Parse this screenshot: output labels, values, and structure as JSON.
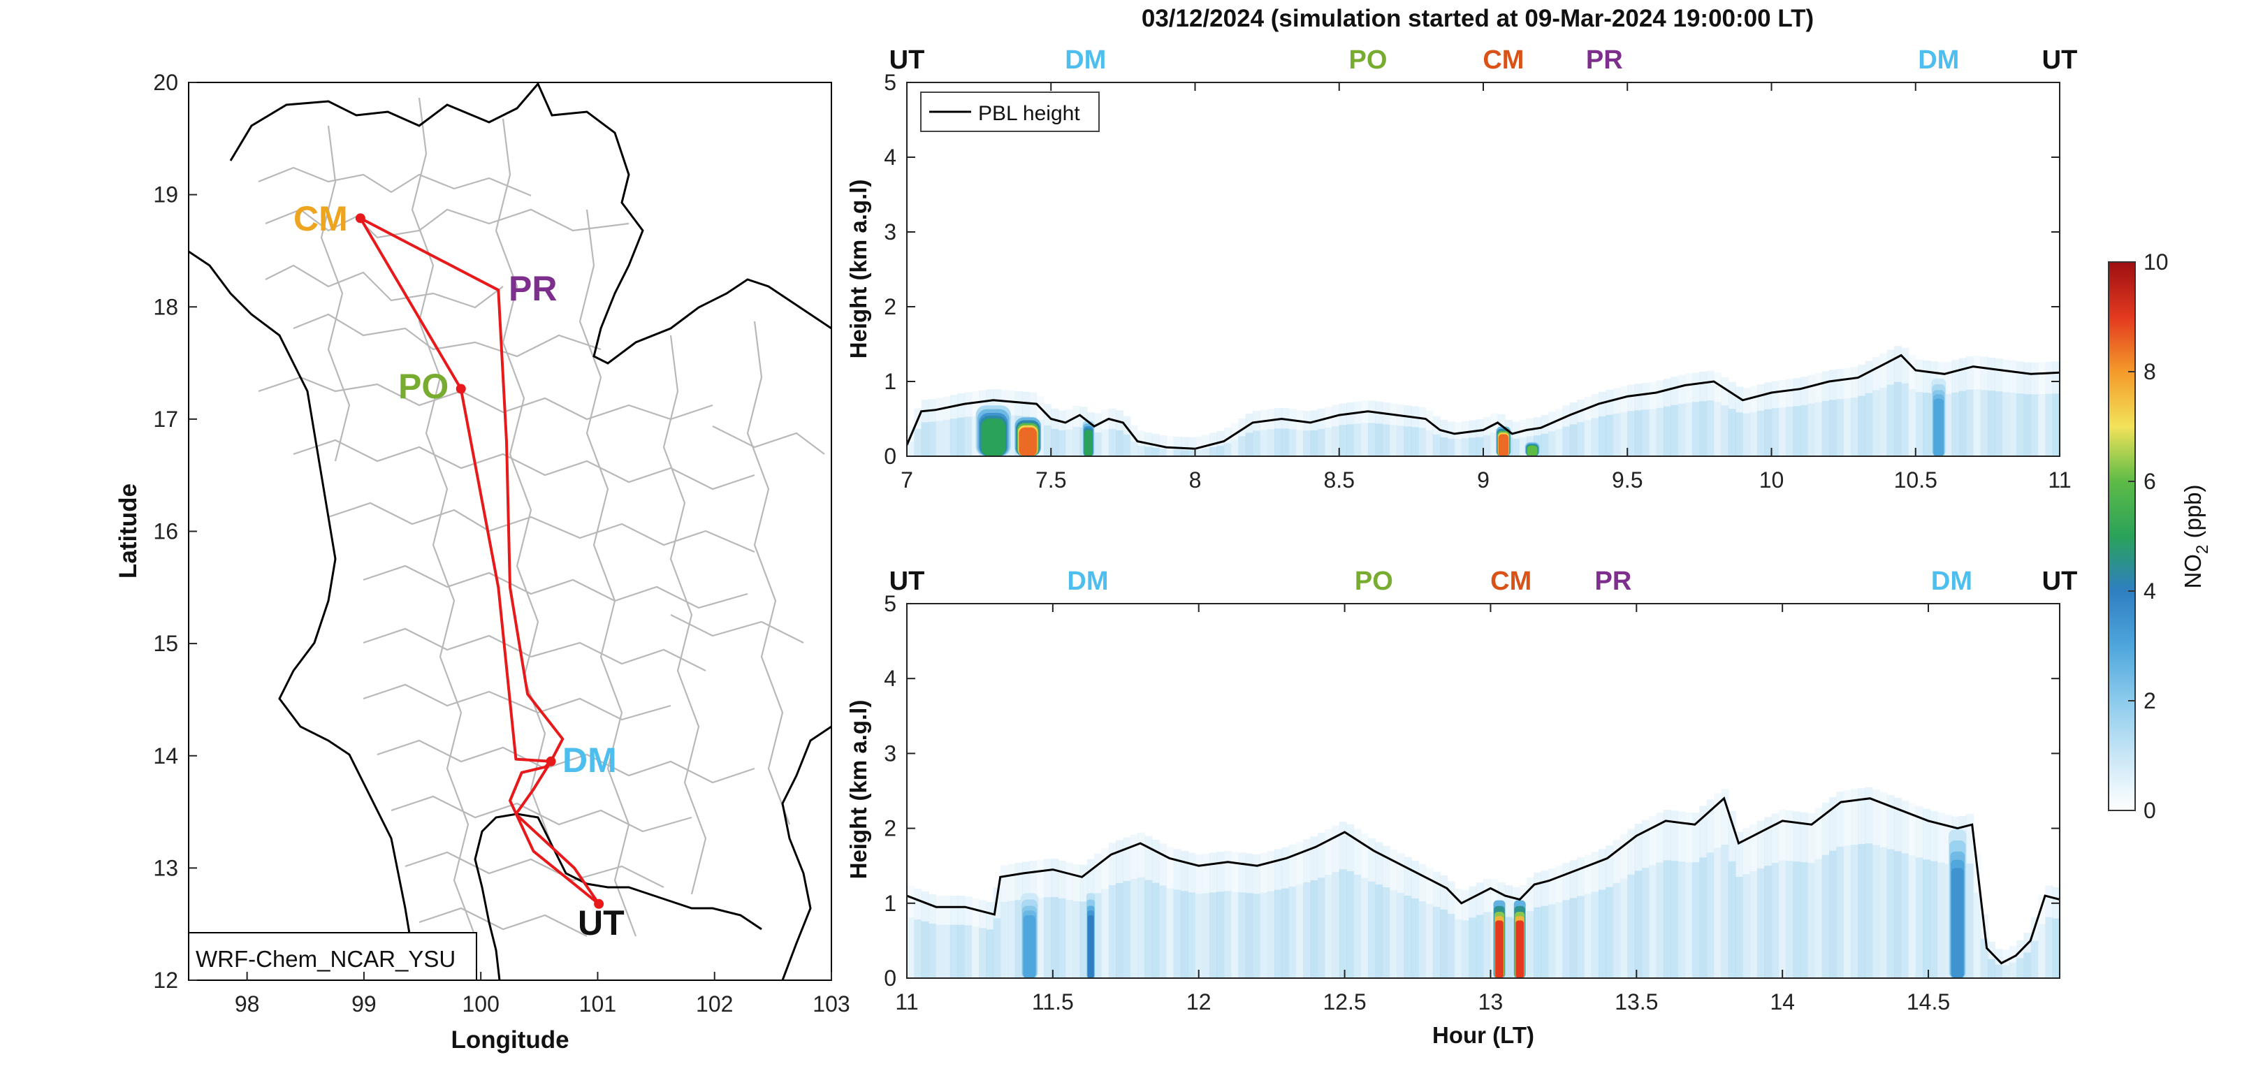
{
  "figure": {
    "title": "03/12/2024 (simulation started at 09-Mar-2024 19:00:00 LT)"
  },
  "colors": {
    "route": "#e8191b",
    "CM": "#eda41f",
    "PR": "#7e2f8e",
    "PO": "#77ac30",
    "DM": "#4dbeee",
    "UT": "#111111",
    "CM_top": "#d95319",
    "pbl": "#000000",
    "border": "#000000",
    "province": "#b5b5b5"
  },
  "colormap": [
    "#ffffff",
    "#c9e6f6",
    "#8ccbec",
    "#4ea6dc",
    "#2f7fc1",
    "#2aa25a",
    "#5dbb46",
    "#f2e35a",
    "#f49a2a",
    "#e2391f",
    "#9e0f12"
  ],
  "chart_data": [
    {
      "type": "map",
      "xlabel": "Longitude",
      "ylabel": "Latitude",
      "xlim": [
        97.5,
        103
      ],
      "ylim": [
        12,
        20
      ],
      "xticks": [
        "98",
        "99",
        "100",
        "101",
        "102",
        "103"
      ],
      "yticks": [
        "12",
        "13",
        "14",
        "15",
        "16",
        "17",
        "18",
        "19",
        "20"
      ],
      "model_label": "WRF-Chem_NCAR_YSU",
      "sites": [
        {
          "code": "CM",
          "lon": 98.97,
          "lat": 18.79
        },
        {
          "code": "PR",
          "lon": 100.13,
          "lat": 18.15
        },
        {
          "code": "PO",
          "lon": 99.83,
          "lat": 17.27
        },
        {
          "code": "DM",
          "lon": 100.6,
          "lat": 13.95
        },
        {
          "code": "UT",
          "lon": 101.01,
          "lat": 12.68
        }
      ],
      "route_lonlat": [
        [
          101.01,
          12.68
        ],
        [
          100.45,
          13.15
        ],
        [
          100.25,
          13.6
        ],
        [
          100.35,
          13.85
        ],
        [
          100.55,
          13.9
        ],
        [
          100.6,
          13.95
        ],
        [
          100.7,
          14.15
        ],
        [
          100.4,
          14.55
        ],
        [
          100.25,
          15.5
        ],
        [
          100.22,
          16.8
        ],
        [
          100.15,
          18.15
        ],
        [
          98.97,
          18.79
        ],
        [
          99.83,
          17.27
        ],
        [
          100.15,
          15.5
        ],
        [
          100.3,
          13.97
        ],
        [
          100.6,
          13.95
        ],
        [
          100.45,
          13.7
        ],
        [
          100.3,
          13.48
        ],
        [
          100.8,
          13.0
        ],
        [
          101.01,
          12.68
        ]
      ]
    },
    {
      "type": "heatmap",
      "ylabel": "Height (km a.g.l)",
      "xlim": [
        7,
        11
      ],
      "ylim": [
        0,
        5
      ],
      "xticks": [
        "7",
        "7.5",
        "8",
        "8.5",
        "9",
        "9.5",
        "10",
        "10.5",
        "11"
      ],
      "yticks": [
        "0",
        "1",
        "2",
        "3",
        "4",
        "5"
      ],
      "legend": "PBL height",
      "site_labels": [
        {
          "text": "UT",
          "hour": 7.0
        },
        {
          "text": "DM",
          "hour": 7.62
        },
        {
          "text": "PO",
          "hour": 8.6
        },
        {
          "text": "CM",
          "hour": 9.07
        },
        {
          "text": "PR",
          "hour": 9.42
        },
        {
          "text": "DM",
          "hour": 10.58
        },
        {
          "text": "UT",
          "hour": 11.0
        }
      ],
      "pbl_height": {
        "hours": [
          7.0,
          7.05,
          7.1,
          7.2,
          7.3,
          7.45,
          7.5,
          7.55,
          7.6,
          7.65,
          7.7,
          7.75,
          7.8,
          7.9,
          8.0,
          8.1,
          8.2,
          8.3,
          8.4,
          8.5,
          8.6,
          8.7,
          8.8,
          8.85,
          8.9,
          9.0,
          9.05,
          9.1,
          9.15,
          9.2,
          9.3,
          9.4,
          9.5,
          9.6,
          9.7,
          9.8,
          9.9,
          10.0,
          10.1,
          10.2,
          10.3,
          10.4,
          10.45,
          10.5,
          10.6,
          10.7,
          10.8,
          10.9,
          11.0
        ],
        "km": [
          0.15,
          0.6,
          0.62,
          0.7,
          0.75,
          0.7,
          0.5,
          0.45,
          0.55,
          0.4,
          0.5,
          0.45,
          0.2,
          0.12,
          0.1,
          0.2,
          0.45,
          0.5,
          0.45,
          0.55,
          0.6,
          0.55,
          0.5,
          0.35,
          0.3,
          0.35,
          0.45,
          0.3,
          0.35,
          0.38,
          0.55,
          0.7,
          0.8,
          0.85,
          0.95,
          1.0,
          0.75,
          0.85,
          0.9,
          1.0,
          1.05,
          1.25,
          1.35,
          1.15,
          1.1,
          1.2,
          1.15,
          1.1,
          1.12
        ]
      },
      "no2_blobs": [
        {
          "hour": 7.3,
          "width": 0.12,
          "top_km": 0.72,
          "peak_ppb": 5.0
        },
        {
          "hour": 7.42,
          "width": 0.09,
          "top_km": 0.55,
          "peak_ppb": 8.5
        },
        {
          "hour": 7.63,
          "width": 0.04,
          "top_km": 0.5,
          "peak_ppb": 5.0
        },
        {
          "hour": 9.07,
          "width": 0.05,
          "top_km": 0.42,
          "peak_ppb": 8.5
        },
        {
          "hour": 9.17,
          "width": 0.05,
          "top_km": 0.2,
          "peak_ppb": 6.0
        },
        {
          "hour": 10.58,
          "width": 0.05,
          "top_km": 1.1,
          "peak_ppb": 3.0
        }
      ]
    },
    {
      "type": "heatmap",
      "xlabel": "Hour (LT)",
      "ylabel": "Height (km a.g.l)",
      "xlim": [
        11,
        14.95
      ],
      "ylim": [
        0,
        5
      ],
      "xticks": [
        "11",
        "11.5",
        "12",
        "12.5",
        "13",
        "13.5",
        "14",
        "14.5"
      ],
      "yticks": [
        "0",
        "1",
        "2",
        "3",
        "4",
        "5"
      ],
      "site_labels": [
        {
          "text": "UT",
          "hour": 11.0
        },
        {
          "text": "DM",
          "hour": 11.62
        },
        {
          "text": "PO",
          "hour": 12.6
        },
        {
          "text": "CM",
          "hour": 13.07
        },
        {
          "text": "PR",
          "hour": 13.42
        },
        {
          "text": "DM",
          "hour": 14.58
        },
        {
          "text": "UT",
          "hour": 14.95
        }
      ],
      "pbl_height": {
        "hours": [
          11.0,
          11.1,
          11.2,
          11.3,
          11.32,
          11.4,
          11.5,
          11.6,
          11.7,
          11.8,
          11.9,
          12.0,
          12.1,
          12.2,
          12.3,
          12.4,
          12.5,
          12.6,
          12.7,
          12.8,
          12.85,
          12.9,
          12.95,
          13.0,
          13.05,
          13.1,
          13.15,
          13.2,
          13.3,
          13.4,
          13.5,
          13.6,
          13.7,
          13.8,
          13.85,
          13.9,
          14.0,
          14.1,
          14.2,
          14.3,
          14.4,
          14.5,
          14.6,
          14.65,
          14.7,
          14.75,
          14.8,
          14.85,
          14.9,
          14.95
        ],
        "km": [
          1.1,
          0.95,
          0.95,
          0.85,
          1.35,
          1.4,
          1.45,
          1.35,
          1.65,
          1.8,
          1.6,
          1.5,
          1.55,
          1.5,
          1.6,
          1.75,
          1.95,
          1.7,
          1.5,
          1.3,
          1.2,
          1.0,
          1.1,
          1.2,
          1.1,
          1.05,
          1.25,
          1.3,
          1.45,
          1.6,
          1.9,
          2.1,
          2.05,
          2.4,
          1.8,
          1.9,
          2.1,
          2.05,
          2.35,
          2.4,
          2.25,
          2.1,
          2.0,
          2.05,
          0.4,
          0.2,
          0.3,
          0.5,
          1.1,
          1.05
        ]
      },
      "no2_blobs": [
        {
          "hour": 11.42,
          "width": 0.06,
          "top_km": 1.2,
          "peak_ppb": 3.0
        },
        {
          "hour": 11.63,
          "width": 0.03,
          "top_km": 1.2,
          "peak_ppb": 4.0
        },
        {
          "hour": 13.03,
          "width": 0.04,
          "top_km": 1.1,
          "peak_ppb": 9.0
        },
        {
          "hour": 13.1,
          "width": 0.04,
          "top_km": 1.1,
          "peak_ppb": 9.0
        },
        {
          "hour": 14.6,
          "width": 0.06,
          "top_km": 2.1,
          "peak_ppb": 3.5
        }
      ]
    },
    {
      "type": "colorbar",
      "label_main": "NO",
      "label_sub": "2",
      "label_unit": " (ppb)",
      "ticks": [
        "0",
        "2",
        "4",
        "6",
        "8",
        "10"
      ],
      "range": [
        0,
        10
      ]
    }
  ]
}
